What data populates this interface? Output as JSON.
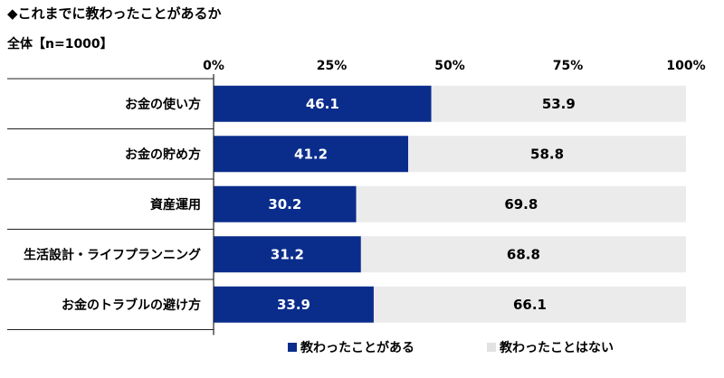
{
  "header": {
    "title": "◆これまでに教わったことがあるか",
    "subtitle": "全体【n=1000】"
  },
  "chart_data": {
    "type": "bar",
    "orientation": "horizontal",
    "stacked": true,
    "percent": true,
    "categories": [
      "お金の使い方",
      "お金の貯め方",
      "資産運用",
      "生活設計・ライフプランニング",
      "お金のトラブルの避け方"
    ],
    "series": [
      {
        "name": "教わったことがある",
        "values": [
          46.1,
          41.2,
          30.2,
          31.2,
          33.9
        ],
        "color": "#0a2d8c"
      },
      {
        "name": "教わったことはない",
        "values": [
          53.9,
          58.8,
          69.8,
          68.8,
          66.1
        ],
        "color": "#ebebeb"
      }
    ],
    "xlim": [
      0,
      100
    ],
    "xticks": [
      "0%",
      "25%",
      "50%",
      "75%",
      "100%"
    ],
    "xtick_values": [
      0,
      25,
      50,
      75,
      100
    ],
    "legend_position": "bottom",
    "grid": false
  }
}
